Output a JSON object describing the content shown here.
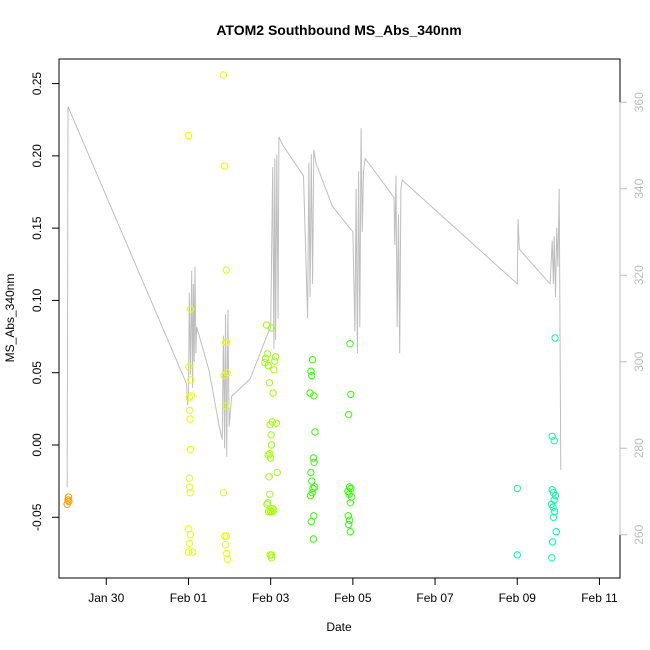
{
  "chart_data": {
    "type": "scatter",
    "title": "ATOM2 Southbound MS_Abs_340nm",
    "xlabel": "Date",
    "ylabel": "MS_Abs_340nm",
    "x_ticks": [
      "Jan 30",
      "Feb 01",
      "Feb 03",
      "Feb 05",
      "Feb 07",
      "Feb 09",
      "Feb 11"
    ],
    "x_tick_days": [
      0,
      2,
      4,
      6,
      8,
      10,
      12
    ],
    "xlim_days": [
      -1.15,
      12.5
    ],
    "ylim": [
      -0.092,
      0.267
    ],
    "y_ticks": [
      -0.05,
      0.0,
      0.05,
      0.1,
      0.15,
      0.2,
      0.25
    ],
    "y_tick_labels": [
      "-0.05",
      "0.00",
      "0.05",
      "0.10",
      "0.15",
      "0.20",
      "0.25"
    ],
    "y2lim": [
      250,
      370
    ],
    "y2_ticks": [
      260,
      280,
      300,
      320,
      340,
      360
    ],
    "y2_tick_labels": [
      "260",
      "280",
      "300",
      "320",
      "340",
      "360"
    ],
    "grid": false,
    "line_series": {
      "name": "",
      "color": "#bebebe",
      "points": [
        [
          -0.95,
          271
        ],
        [
          -0.93,
          359
        ],
        [
          1.95,
          295
        ],
        [
          1.98,
          290
        ],
        [
          2.0,
          293
        ],
        [
          2.02,
          316
        ],
        [
          2.05,
          297
        ],
        [
          2.08,
          321
        ],
        [
          2.1,
          294
        ],
        [
          2.12,
          318
        ],
        [
          2.14,
          300
        ],
        [
          2.16,
          322
        ],
        [
          2.18,
          302
        ],
        [
          2.2,
          308
        ],
        [
          2.5,
          298
        ],
        [
          2.75,
          285
        ],
        [
          2.82,
          282
        ],
        [
          2.85,
          306
        ],
        [
          2.88,
          280
        ],
        [
          2.9,
          311
        ],
        [
          2.93,
          278
        ],
        [
          2.96,
          312
        ],
        [
          2.99,
          285
        ],
        [
          3.05,
          292
        ],
        [
          3.5,
          296
        ],
        [
          3.95,
          307
        ],
        [
          4.0,
          308
        ],
        [
          4.05,
          345
        ],
        [
          4.08,
          303
        ],
        [
          4.1,
          347
        ],
        [
          4.12,
          305
        ],
        [
          4.15,
          348
        ],
        [
          4.18,
          310
        ],
        [
          4.2,
          352
        ],
        [
          4.3,
          350
        ],
        [
          4.8,
          343
        ],
        [
          4.9,
          310
        ],
        [
          4.93,
          346
        ],
        [
          4.96,
          315
        ],
        [
          4.99,
          348
        ],
        [
          5.02,
          318
        ],
        [
          5.05,
          349
        ],
        [
          5.1,
          346
        ],
        [
          5.5,
          336
        ],
        [
          6.0,
          330
        ],
        [
          6.05,
          307
        ],
        [
          6.08,
          340
        ],
        [
          6.11,
          302
        ],
        [
          6.14,
          344
        ],
        [
          6.17,
          308
        ],
        [
          6.2,
          354
        ],
        [
          6.23,
          330
        ],
        [
          6.26,
          344
        ],
        [
          6.3,
          347
        ],
        [
          7.0,
          338
        ],
        [
          7.02,
          327
        ],
        [
          7.05,
          343
        ],
        [
          7.08,
          308
        ],
        [
          7.11,
          334
        ],
        [
          7.14,
          302
        ],
        [
          7.17,
          340
        ],
        [
          7.2,
          342
        ],
        [
          10.0,
          318
        ],
        [
          10.02,
          333
        ],
        [
          10.05,
          326
        ],
        [
          10.8,
          318
        ],
        [
          10.85,
          328
        ],
        [
          10.88,
          318
        ],
        [
          10.9,
          329
        ],
        [
          10.93,
          315
        ],
        [
          10.96,
          331
        ],
        [
          10.99,
          322
        ],
        [
          11.02,
          340
        ],
        [
          11.06,
          275
        ]
      ]
    },
    "series": [
      {
        "name": "",
        "color": "#ff9900",
        "points": [
          [
            -0.95,
            -0.041
          ],
          [
            -0.93,
            -0.038
          ],
          [
            -0.92,
            -0.036
          ],
          [
            -0.91,
            -0.039
          ]
        ]
      },
      {
        "name": "",
        "color": "#e5ff00",
        "points": [
          [
            2.0,
            0.214
          ],
          [
            2.01,
            0.054
          ],
          [
            2.02,
            0.033
          ],
          [
            2.03,
            0.024
          ],
          [
            2.04,
            0.018
          ],
          [
            2.05,
            0.094
          ],
          [
            2.06,
            0.045
          ],
          [
            2.07,
            0.034
          ],
          [
            2.05,
            -0.003
          ],
          [
            2.02,
            -0.023
          ],
          [
            2.03,
            -0.029
          ],
          [
            2.04,
            -0.033
          ],
          [
            2.0,
            -0.058
          ],
          [
            2.05,
            -0.062
          ],
          [
            2.02,
            -0.068
          ],
          [
            2.0,
            -0.074
          ],
          [
            2.1,
            -0.074
          ],
          [
            2.85,
            0.256
          ],
          [
            2.88,
            0.193
          ],
          [
            2.92,
            0.121
          ],
          [
            2.9,
            0.071
          ],
          [
            2.93,
            0.071
          ],
          [
            2.94,
            0.05
          ],
          [
            2.87,
            0.048
          ],
          [
            2.91,
            0.027
          ],
          [
            2.85,
            -0.033
          ],
          [
            2.88,
            -0.063
          ],
          [
            2.92,
            -0.063
          ],
          [
            2.9,
            -0.069
          ],
          [
            2.93,
            -0.075
          ],
          [
            2.95,
            -0.079
          ]
        ]
      },
      {
        "name": "",
        "color": "#9dff00",
        "points": [
          [
            4.02,
            0.081
          ],
          [
            4.12,
            0.061
          ],
          [
            4.1,
            0.058
          ],
          [
            4.08,
            0.052
          ],
          [
            4.06,
            0.036
          ],
          [
            4.04,
            0.016
          ],
          [
            4.14,
            0.015
          ],
          [
            4.02,
            0.0
          ],
          [
            4.0,
            -0.009
          ],
          [
            4.16,
            -0.019
          ],
          [
            4.05,
            -0.044
          ],
          [
            4.08,
            -0.045
          ],
          [
            4.0,
            -0.046
          ],
          [
            4.04,
            -0.046
          ],
          [
            4.02,
            -0.076
          ],
          [
            3.9,
            0.083
          ],
          [
            3.92,
            0.063
          ],
          [
            3.88,
            0.06
          ],
          [
            3.86,
            0.057
          ],
          [
            3.94,
            0.055
          ],
          [
            3.97,
            0.043
          ],
          [
            3.99,
            0.014
          ],
          [
            4.01,
            0.007
          ],
          [
            3.98,
            -0.006
          ],
          [
            3.94,
            -0.007
          ],
          [
            3.96,
            -0.022
          ],
          [
            3.98,
            -0.034
          ],
          [
            3.93,
            -0.04
          ],
          [
            3.91,
            -0.041
          ],
          [
            3.95,
            -0.046
          ],
          [
            3.99,
            -0.076
          ],
          [
            4.02,
            -0.078
          ]
        ]
      },
      {
        "name": "",
        "color": "#33ff00",
        "points": [
          [
            5.02,
            0.059
          ],
          [
            4.98,
            0.051
          ],
          [
            5.0,
            0.048
          ],
          [
            4.96,
            0.036
          ],
          [
            5.05,
            0.034
          ],
          [
            5.08,
            0.009
          ],
          [
            5.04,
            -0.009
          ],
          [
            5.06,
            -0.012
          ],
          [
            4.98,
            -0.019
          ],
          [
            5.0,
            -0.025
          ],
          [
            5.03,
            -0.03
          ],
          [
            5.07,
            -0.029
          ],
          [
            5.01,
            -0.033
          ],
          [
            4.97,
            -0.035
          ],
          [
            5.05,
            -0.049
          ],
          [
            4.99,
            -0.053
          ],
          [
            5.04,
            -0.065
          ],
          [
            5.93,
            0.07
          ],
          [
            5.95,
            0.035
          ],
          [
            5.9,
            0.021
          ],
          [
            5.92,
            -0.029
          ],
          [
            5.95,
            -0.03
          ],
          [
            5.88,
            -0.032
          ],
          [
            5.91,
            -0.034
          ],
          [
            5.97,
            -0.036
          ],
          [
            5.94,
            -0.04
          ],
          [
            5.89,
            -0.049
          ],
          [
            5.92,
            -0.052
          ],
          [
            5.9,
            -0.055
          ],
          [
            5.94,
            -0.06
          ]
        ]
      },
      {
        "name": "",
        "color": "#00ffaa",
        "points": [
          [
            10.0,
            -0.03
          ],
          [
            10.0,
            -0.076
          ],
          [
            10.85,
            0.006
          ],
          [
            10.9,
            0.003
          ],
          [
            10.92,
            0.074
          ],
          [
            10.85,
            -0.031
          ],
          [
            10.88,
            -0.033
          ],
          [
            10.93,
            -0.035
          ],
          [
            10.9,
            -0.038
          ],
          [
            10.83,
            -0.041
          ],
          [
            10.87,
            -0.043
          ],
          [
            10.91,
            -0.046
          ],
          [
            10.88,
            -0.05
          ],
          [
            10.95,
            -0.06
          ],
          [
            10.86,
            -0.067
          ],
          [
            10.84,
            -0.078
          ]
        ]
      }
    ]
  }
}
